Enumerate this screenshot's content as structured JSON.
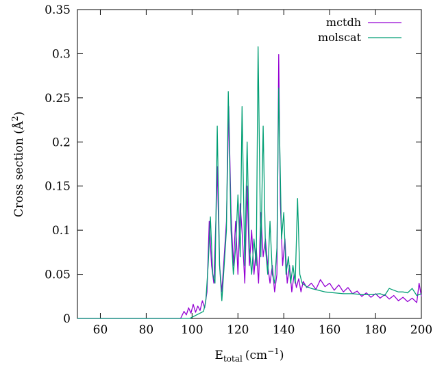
{
  "chart_data": {
    "type": "line",
    "xlabel": "E",
    "xlabel_sub": "total",
    "xlabel_unit": "(cm",
    "xlabel_unit_sup": "−1",
    "xlabel_close": ")",
    "ylabel": "Cross section (Å",
    "ylabel_sup": "2",
    "ylabel_close": ")",
    "xlim": [
      50,
      200
    ],
    "ylim": [
      0,
      0.35
    ],
    "xticks": [
      "60",
      "80",
      "100",
      "120",
      "140",
      "160",
      "180",
      "200"
    ],
    "yticks": [
      "0",
      "0.05",
      "0.1",
      "0.15",
      "0.2",
      "0.25",
      "0.3",
      "0.35"
    ],
    "legend_position": "top-right",
    "series": [
      {
        "name": "mctdh",
        "color": "#9400d3",
        "points": [
          [
            50,
            0.0
          ],
          [
            95,
            0.0
          ],
          [
            96.5,
            0.008
          ],
          [
            97.5,
            0.004
          ],
          [
            98.5,
            0.012
          ],
          [
            99.5,
            0.006
          ],
          [
            100.5,
            0.016
          ],
          [
            101.5,
            0.007
          ],
          [
            102.5,
            0.014
          ],
          [
            103.5,
            0.009
          ],
          [
            104.5,
            0.02
          ],
          [
            105.5,
            0.012
          ],
          [
            106.5,
            0.03
          ],
          [
            107.5,
            0.11
          ],
          [
            108.5,
            0.06
          ],
          [
            109.5,
            0.04
          ],
          [
            110.5,
            0.12
          ],
          [
            111,
            0.172
          ],
          [
            112,
            0.06
          ],
          [
            113,
            0.03
          ],
          [
            114,
            0.07
          ],
          [
            115,
            0.11
          ],
          [
            116,
            0.24
          ],
          [
            117,
            0.12
          ],
          [
            118,
            0.06
          ],
          [
            119,
            0.11
          ],
          [
            120,
            0.05
          ],
          [
            121,
            0.13
          ],
          [
            122,
            0.09
          ],
          [
            123,
            0.04
          ],
          [
            124,
            0.15
          ],
          [
            125,
            0.06
          ],
          [
            126,
            0.1
          ],
          [
            127,
            0.05
          ],
          [
            128,
            0.08
          ],
          [
            129,
            0.04
          ],
          [
            130,
            0.12
          ],
          [
            131,
            0.07
          ],
          [
            132,
            0.09
          ],
          [
            133,
            0.06
          ],
          [
            134,
            0.04
          ],
          [
            135,
            0.06
          ],
          [
            136,
            0.03
          ],
          [
            137,
            0.05
          ],
          [
            137.8,
            0.299
          ],
          [
            138.5,
            0.13
          ],
          [
            139.5,
            0.06
          ],
          [
            140.5,
            0.09
          ],
          [
            141.5,
            0.04
          ],
          [
            142.5,
            0.06
          ],
          [
            143.5,
            0.03
          ],
          [
            144.5,
            0.05
          ],
          [
            145.5,
            0.035
          ],
          [
            146.5,
            0.045
          ],
          [
            147.5,
            0.03
          ],
          [
            148.5,
            0.042
          ],
          [
            150,
            0.035
          ],
          [
            152,
            0.04
          ],
          [
            154,
            0.033
          ],
          [
            156,
            0.044
          ],
          [
            158,
            0.036
          ],
          [
            160,
            0.04
          ],
          [
            162,
            0.032
          ],
          [
            164,
            0.038
          ],
          [
            166,
            0.03
          ],
          [
            168,
            0.035
          ],
          [
            170,
            0.028
          ],
          [
            172,
            0.031
          ],
          [
            174,
            0.025
          ],
          [
            176,
            0.029
          ],
          [
            178,
            0.024
          ],
          [
            180,
            0.028
          ],
          [
            182,
            0.023
          ],
          [
            184,
            0.027
          ],
          [
            186,
            0.022
          ],
          [
            188,
            0.026
          ],
          [
            190,
            0.02
          ],
          [
            192,
            0.024
          ],
          [
            194,
            0.019
          ],
          [
            196,
            0.023
          ],
          [
            198,
            0.018
          ],
          [
            199,
            0.04
          ],
          [
            200,
            0.025
          ]
        ]
      },
      {
        "name": "molscat",
        "color": "#009e73",
        "points": [
          [
            50,
            0.0
          ],
          [
            99,
            0.0
          ],
          [
            100.5,
            0.002
          ],
          [
            102,
            0.004
          ],
          [
            103.5,
            0.006
          ],
          [
            105,
            0.008
          ],
          [
            106,
            0.02
          ],
          [
            107,
            0.06
          ],
          [
            108,
            0.115
          ],
          [
            109,
            0.05
          ],
          [
            110,
            0.04
          ],
          [
            111,
            0.218
          ],
          [
            112,
            0.06
          ],
          [
            113,
            0.02
          ],
          [
            114,
            0.06
          ],
          [
            115,
            0.1
          ],
          [
            115.8,
            0.257
          ],
          [
            117,
            0.1
          ],
          [
            118,
            0.05
          ],
          [
            119,
            0.08
          ],
          [
            120,
            0.14
          ],
          [
            121,
            0.07
          ],
          [
            121.8,
            0.24
          ],
          [
            123,
            0.06
          ],
          [
            124,
            0.2
          ],
          [
            125,
            0.08
          ],
          [
            126,
            0.05
          ],
          [
            127,
            0.09
          ],
          [
            128,
            0.06
          ],
          [
            128.8,
            0.308
          ],
          [
            130,
            0.07
          ],
          [
            131,
            0.218
          ],
          [
            132,
            0.08
          ],
          [
            133,
            0.05
          ],
          [
            134,
            0.11
          ],
          [
            135,
            0.05
          ],
          [
            136,
            0.04
          ],
          [
            137,
            0.08
          ],
          [
            137.8,
            0.261
          ],
          [
            139,
            0.09
          ],
          [
            140,
            0.12
          ],
          [
            141,
            0.05
          ],
          [
            142,
            0.07
          ],
          [
            143,
            0.04
          ],
          [
            144,
            0.06
          ],
          [
            145,
            0.04
          ],
          [
            146,
            0.136
          ],
          [
            147,
            0.05
          ],
          [
            148,
            0.04
          ],
          [
            150,
            0.036
          ],
          [
            152,
            0.034
          ],
          [
            155,
            0.032
          ],
          [
            158,
            0.03
          ],
          [
            162,
            0.029
          ],
          [
            166,
            0.028
          ],
          [
            170,
            0.028
          ],
          [
            174,
            0.027
          ],
          [
            178,
            0.027
          ],
          [
            182,
            0.028
          ],
          [
            184,
            0.026
          ],
          [
            186,
            0.034
          ],
          [
            188,
            0.032
          ],
          [
            190,
            0.03
          ],
          [
            192,
            0.03
          ],
          [
            194,
            0.029
          ],
          [
            196,
            0.034
          ],
          [
            198,
            0.026
          ],
          [
            200,
            0.028
          ]
        ]
      }
    ]
  }
}
